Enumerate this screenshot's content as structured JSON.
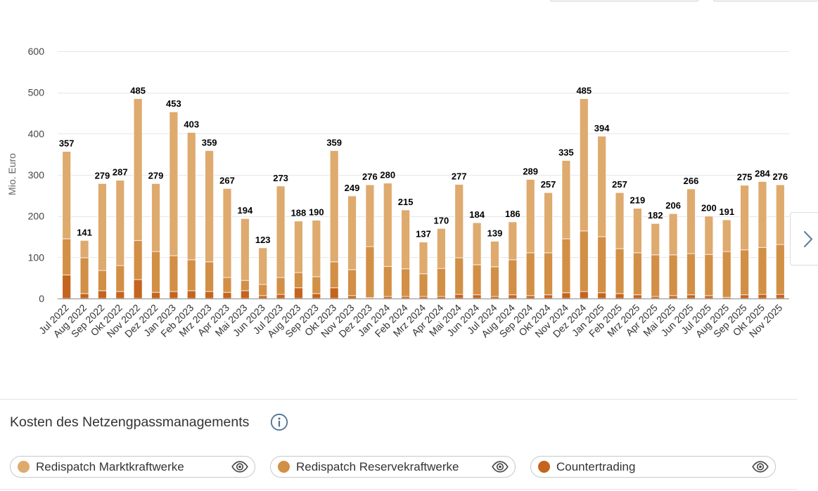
{
  "icons": {
    "info": "info-icon",
    "visibility": "eye-icon",
    "next": "chevron-right-icon"
  },
  "chart_data": {
    "type": "bar",
    "stacked": true,
    "title": "Kosten des Netzengpassmanagements",
    "ylabel": "Mio. Euro",
    "ylim": [
      0,
      600
    ],
    "yticks": [
      0,
      100,
      200,
      300,
      400,
      500,
      600
    ],
    "grid_color": "#e6e6e6",
    "axis_color": "#8c8c8c",
    "categories": [
      "Jul 2022",
      "Aug 2022",
      "Sep 2022",
      "Okt 2022",
      "Nov 2022",
      "Dez 2022",
      "Jan 2023",
      "Feb 2023",
      "Mrz 2023",
      "Apr 2023",
      "Mai 2023",
      "Jun 2023",
      "Jul 2023",
      "Aug 2023",
      "Sep 2023",
      "Okt 2023",
      "Nov 2023",
      "Dez 2023",
      "Jan 2024",
      "Feb 2024",
      "Mrz 2024",
      "Apr 2024",
      "Mai 2024",
      "Jun 2024",
      "Jul 2024",
      "Aug 2024",
      "Sep 2024",
      "Okt 2024",
      "Nov 2024",
      "Dez 2024",
      "Jan 2025",
      "Feb 2025",
      "Mrz 2025",
      "Apr 2025",
      "Mai 2025",
      "Jun 2025",
      "Jul 2025",
      "Aug 2025",
      "Sep 2025",
      "Okt 2025",
      "Nov 2025"
    ],
    "totals": [
      357,
      141,
      279,
      287,
      485,
      279,
      453,
      403,
      359,
      267,
      194,
      123,
      273,
      188,
      190,
      359,
      249,
      276,
      280,
      215,
      137,
      170,
      277,
      184,
      139,
      186,
      289,
      257,
      335,
      485,
      394,
      257,
      219,
      182,
      206,
      266,
      200,
      191,
      275,
      284,
      276
    ],
    "series": [
      {
        "name": "Redispatch Marktkraftwerke",
        "color": "#deaa6e",
        "values": [
          212,
          42,
          211,
          207,
          344,
          165,
          349,
          309,
          270,
          216,
          150,
          89,
          222,
          125,
          137,
          270,
          179,
          150,
          202,
          143,
          77,
          97,
          178,
          102,
          62,
          92,
          178,
          146,
          190,
          321,
          244,
          136,
          108,
          76,
          100,
          157,
          93,
          77,
          157,
          160,
          145
        ]
      },
      {
        "name": "Redispatch Reservekraftwerke",
        "color": "#d28f46",
        "values": [
          88,
          87,
          49,
          63,
          95,
          99,
          87,
          75,
          72,
          36,
          25,
          27,
          41,
          37,
          41,
          63,
          63,
          124,
          73,
          67,
          55,
          68,
          89,
          73,
          72,
          85,
          104,
          102,
          131,
          147,
          136,
          109,
          102,
          101,
          99,
          100,
          100,
          111,
          109,
          114,
          121
        ]
      },
      {
        "name": "Countertrading",
        "color": "#c4641e",
        "values": [
          57,
          12,
          19,
          17,
          46,
          15,
          17,
          19,
          17,
          15,
          19,
          7,
          10,
          26,
          12,
          26,
          7,
          2,
          5,
          5,
          5,
          5,
          10,
          9,
          5,
          9,
          7,
          9,
          14,
          17,
          14,
          12,
          9,
          5,
          7,
          9,
          7,
          3,
          9,
          10,
          10
        ]
      }
    ]
  }
}
